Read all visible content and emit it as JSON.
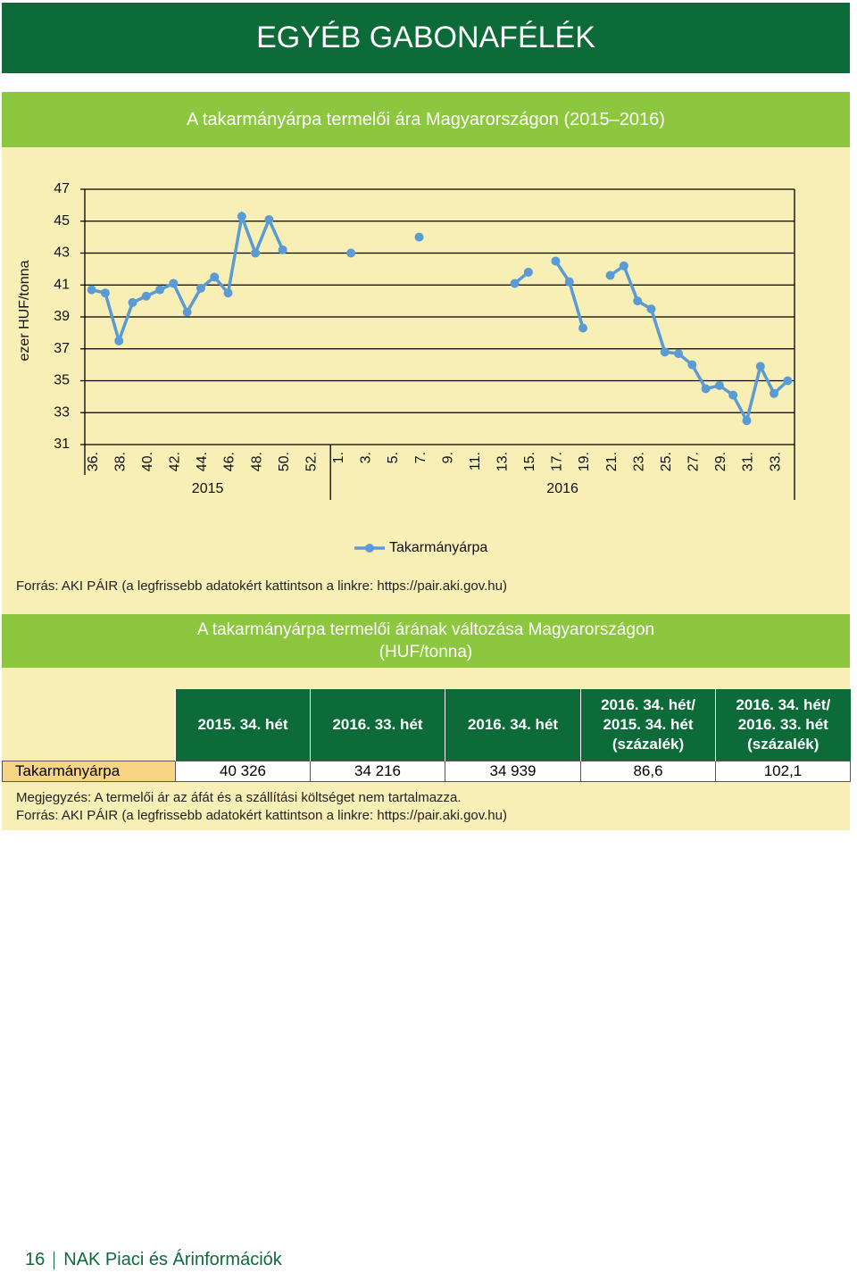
{
  "header": {
    "title": "EGYÉB GABONAFÉLÉK"
  },
  "chart_title": "A takarmányárpa termelői ára Magyarországon (2015–2016)",
  "chart_data": {
    "type": "line",
    "y_label": "ezer HUF/tonna",
    "categories": [
      "36.",
      null,
      "38.",
      null,
      "40.",
      null,
      "42.",
      null,
      "44.",
      null,
      "46.",
      null,
      "48.",
      null,
      "50.",
      null,
      "52.",
      null,
      "1.",
      null,
      "3.",
      null,
      "5.",
      null,
      "7.",
      null,
      "9.",
      null,
      "11.",
      null,
      "13.",
      null,
      "15.",
      null,
      "17.",
      null,
      "19.",
      null,
      "21.",
      null,
      "23.",
      null,
      "25.",
      null,
      "27.",
      null,
      "29.",
      null,
      "31.",
      null,
      "33.",
      null
    ],
    "category_groups": [
      {
        "label": "2015",
        "size": 18
      },
      {
        "label": "2016",
        "size": 34
      }
    ],
    "series": [
      {
        "name": "Takarmányárpa",
        "color": "#5b9bd5",
        "values": [
          40.7,
          40.5,
          37.5,
          39.9,
          40.3,
          40.7,
          41.1,
          39.3,
          40.8,
          41.5,
          40.5,
          45.3,
          43.0,
          45.1,
          43.2,
          null,
          null,
          null,
          null,
          43.0,
          null,
          null,
          null,
          null,
          44.0,
          null,
          null,
          null,
          null,
          null,
          null,
          41.1,
          41.8,
          null,
          42.5,
          41.2,
          38.3,
          null,
          41.6,
          42.2,
          40.0,
          39.5,
          36.8,
          36.7,
          36.0,
          34.5,
          34.7,
          34.1,
          32.5,
          35.9,
          34.2,
          35.0
        ]
      }
    ],
    "ylim": [
      31,
      47
    ],
    "yticks": [
      31,
      33,
      35,
      37,
      39,
      41,
      43,
      45,
      47
    ],
    "grid": true,
    "legend": "bottom"
  },
  "source": "Forrás: AKI PÁIR (a legfrissebb adatokért kattintson a linkre: https://pair.aki.gov.hu)",
  "table": {
    "title": "A takarmányárpa termelői árának változása Magyarországon\n(HUF/tonna)",
    "columns": [
      "2015. 34. hét",
      "2016. 33. hét",
      "2016. 34. hét",
      "2016. 34. hét/\n2015. 34. hét\n(százalék)",
      "2016. 34. hét/\n2016. 33. hét\n(százalék)"
    ],
    "rows": [
      [
        "Takarmányárpa",
        "40 326",
        "34 216",
        "34 939",
        "86,6",
        "102,1"
      ]
    ]
  },
  "notes": [
    "Megjegyzés: A termelői ár az áfát és a szállítási költséget nem tartalmazza.",
    "Forrás: AKI PÁIR (a legfrissebb adatokért kattintson a linkre: https://pair.aki.gov.hu)"
  ],
  "footer": {
    "page": "16",
    "text": "NAK Piaci és Árinformációk"
  }
}
